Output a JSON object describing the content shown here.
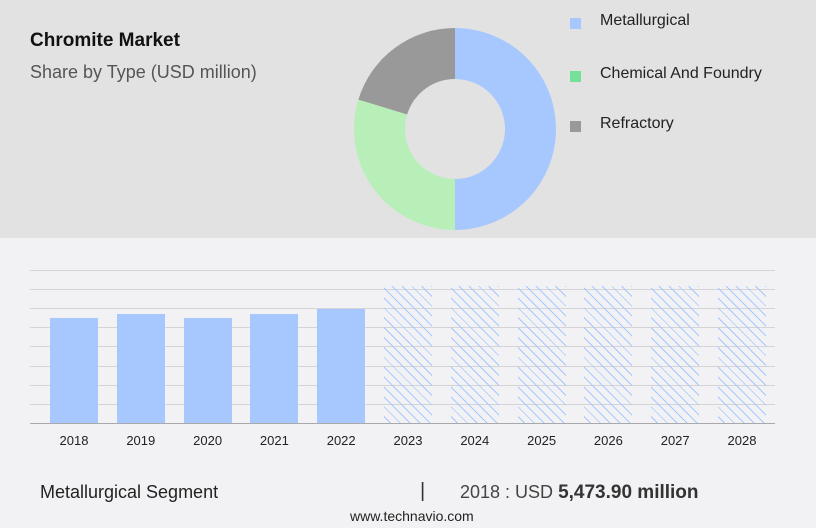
{
  "header": {
    "title": "Chromite Market",
    "subtitle": "Share by Type (USD million)"
  },
  "legend": [
    {
      "label": "Metallurgical",
      "color": "#a6c8ff"
    },
    {
      "label": "Chemical And Foundry",
      "color": "#74e09a"
    },
    {
      "label": "Refractory",
      "color": "#999999"
    }
  ],
  "footer": {
    "segment": "Metallurgical Segment",
    "separator": "|",
    "value_prefix": "2018 : USD ",
    "value_bold": "5,473.90 million",
    "url": "www.technavio.com"
  },
  "chart_data": [
    {
      "type": "pie",
      "title": "Chromite Market",
      "subtitle": "Share by Type (USD million)",
      "donut": true,
      "categories": [
        "Metallurgical",
        "Chemical And Foundry",
        "Refractory"
      ],
      "values": [
        50,
        29.7,
        20.3
      ],
      "colors": [
        "#a6c8ff",
        "#b8efb8",
        "#999999"
      ],
      "legend_position": "right"
    },
    {
      "type": "bar",
      "title": "Metallurgical Segment",
      "categories": [
        "2018",
        "2019",
        "2020",
        "2021",
        "2022",
        "2023",
        "2024",
        "2025",
        "2026",
        "2027",
        "2028"
      ],
      "values": [
        5473.9,
        5680,
        5470,
        5690,
        5940,
        7150,
        7150,
        7150,
        7150,
        7150,
        7150
      ],
      "forecast_from": "2023",
      "xlabel": "",
      "ylabel": "",
      "ylim": [
        0,
        8000
      ],
      "grid": true,
      "annotation": "2018 : USD 5,473.90 million"
    }
  ]
}
